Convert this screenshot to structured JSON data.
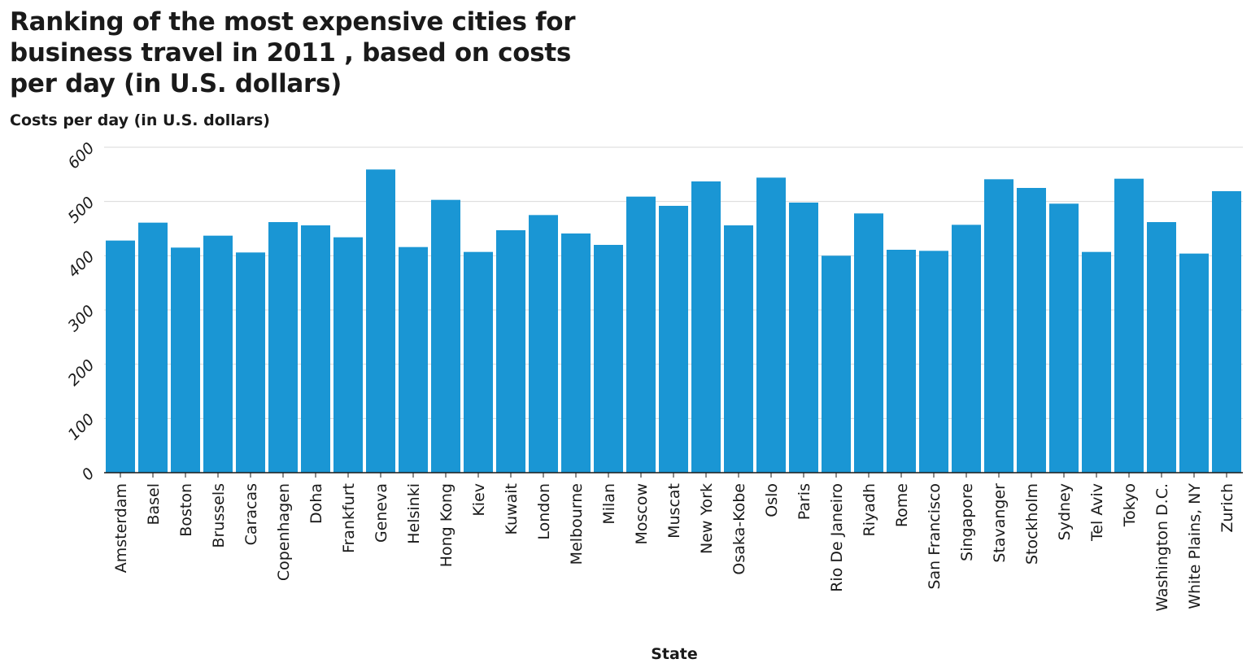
{
  "chart_data": {
    "type": "bar",
    "title": "Ranking of the most expensive cities for business travel in 2011 , based on costs per day (in U.S. dollars)",
    "xlabel": "State",
    "ylabel": "Costs per day (in U.S. dollars)",
    "ylim": [
      0,
      600
    ],
    "yticks": [
      "0",
      "100",
      "200",
      "300",
      "400",
      "500",
      "600"
    ],
    "grid": true,
    "color": "#1a96d4",
    "categories": [
      "Amsterdam",
      "Basel",
      "Boston",
      "Brussels",
      "Caracas",
      "Copenhagen",
      "Doha",
      "Frankfurt",
      "Geneva",
      "Helsinki",
      "Hong Kong",
      "Kiev",
      "Kuwait",
      "London",
      "Melbourne",
      "Milan",
      "Moscow",
      "Muscat",
      "New York",
      "Osaka-Kobe",
      "Oslo",
      "Paris",
      "Rio De Janeiro",
      "Riyadh",
      "Rome",
      "San Francisco",
      "Singapore",
      "Stavanger",
      "Stockholm",
      "Sydney",
      "Tel Aviv",
      "Tokyo",
      "Washington D.C.",
      "White Plains, NY",
      "Zurich"
    ],
    "values": [
      428,
      461,
      415,
      437,
      406,
      462,
      456,
      434,
      559,
      416,
      503,
      407,
      447,
      475,
      441,
      420,
      509,
      492,
      537,
      456,
      544,
      498,
      400,
      478,
      411,
      409,
      457,
      541,
      525,
      496,
      407,
      542,
      462,
      404,
      519
    ]
  }
}
